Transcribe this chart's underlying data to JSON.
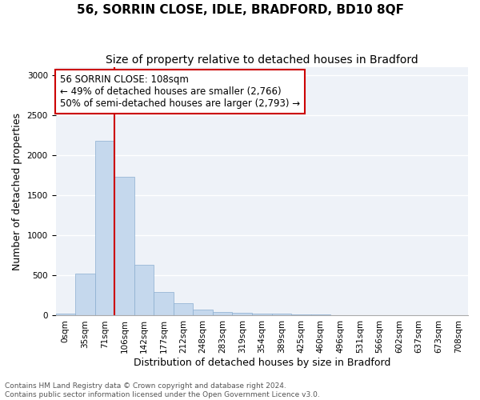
{
  "title": "56, SORRIN CLOSE, IDLE, BRADFORD, BD10 8QF",
  "subtitle": "Size of property relative to detached houses in Bradford",
  "xlabel": "Distribution of detached houses by size in Bradford",
  "ylabel": "Number of detached properties",
  "bin_labels": [
    "0sqm",
    "35sqm",
    "71sqm",
    "106sqm",
    "142sqm",
    "177sqm",
    "212sqm",
    "248sqm",
    "283sqm",
    "319sqm",
    "354sqm",
    "389sqm",
    "425sqm",
    "460sqm",
    "496sqm",
    "531sqm",
    "566sqm",
    "602sqm",
    "637sqm",
    "673sqm",
    "708sqm"
  ],
  "bar_values": [
    25,
    520,
    2180,
    1730,
    635,
    290,
    155,
    70,
    45,
    35,
    25,
    20,
    15,
    10,
    5,
    3,
    2,
    2,
    1,
    1,
    1
  ],
  "bar_color": "#c5d8ed",
  "bar_edge_color": "#8aaed0",
  "property_line_color": "#cc0000",
  "annotation_text": "56 SORRIN CLOSE: 108sqm\n← 49% of detached houses are smaller (2,766)\n50% of semi-detached houses are larger (2,793) →",
  "annotation_box_color": "#ffffff",
  "annotation_box_edge": "#cc0000",
  "ylim": [
    0,
    3100
  ],
  "yticks": [
    0,
    500,
    1000,
    1500,
    2000,
    2500,
    3000
  ],
  "footer_text": "Contains HM Land Registry data © Crown copyright and database right 2024.\nContains public sector information licensed under the Open Government Licence v3.0.",
  "bg_color": "#eef2f8",
  "grid_color": "#ffffff",
  "fig_bg_color": "#ffffff",
  "title_fontsize": 11,
  "subtitle_fontsize": 10,
  "axis_label_fontsize": 9,
  "tick_fontsize": 7.5,
  "annotation_fontsize": 8.5,
  "footer_fontsize": 6.5
}
